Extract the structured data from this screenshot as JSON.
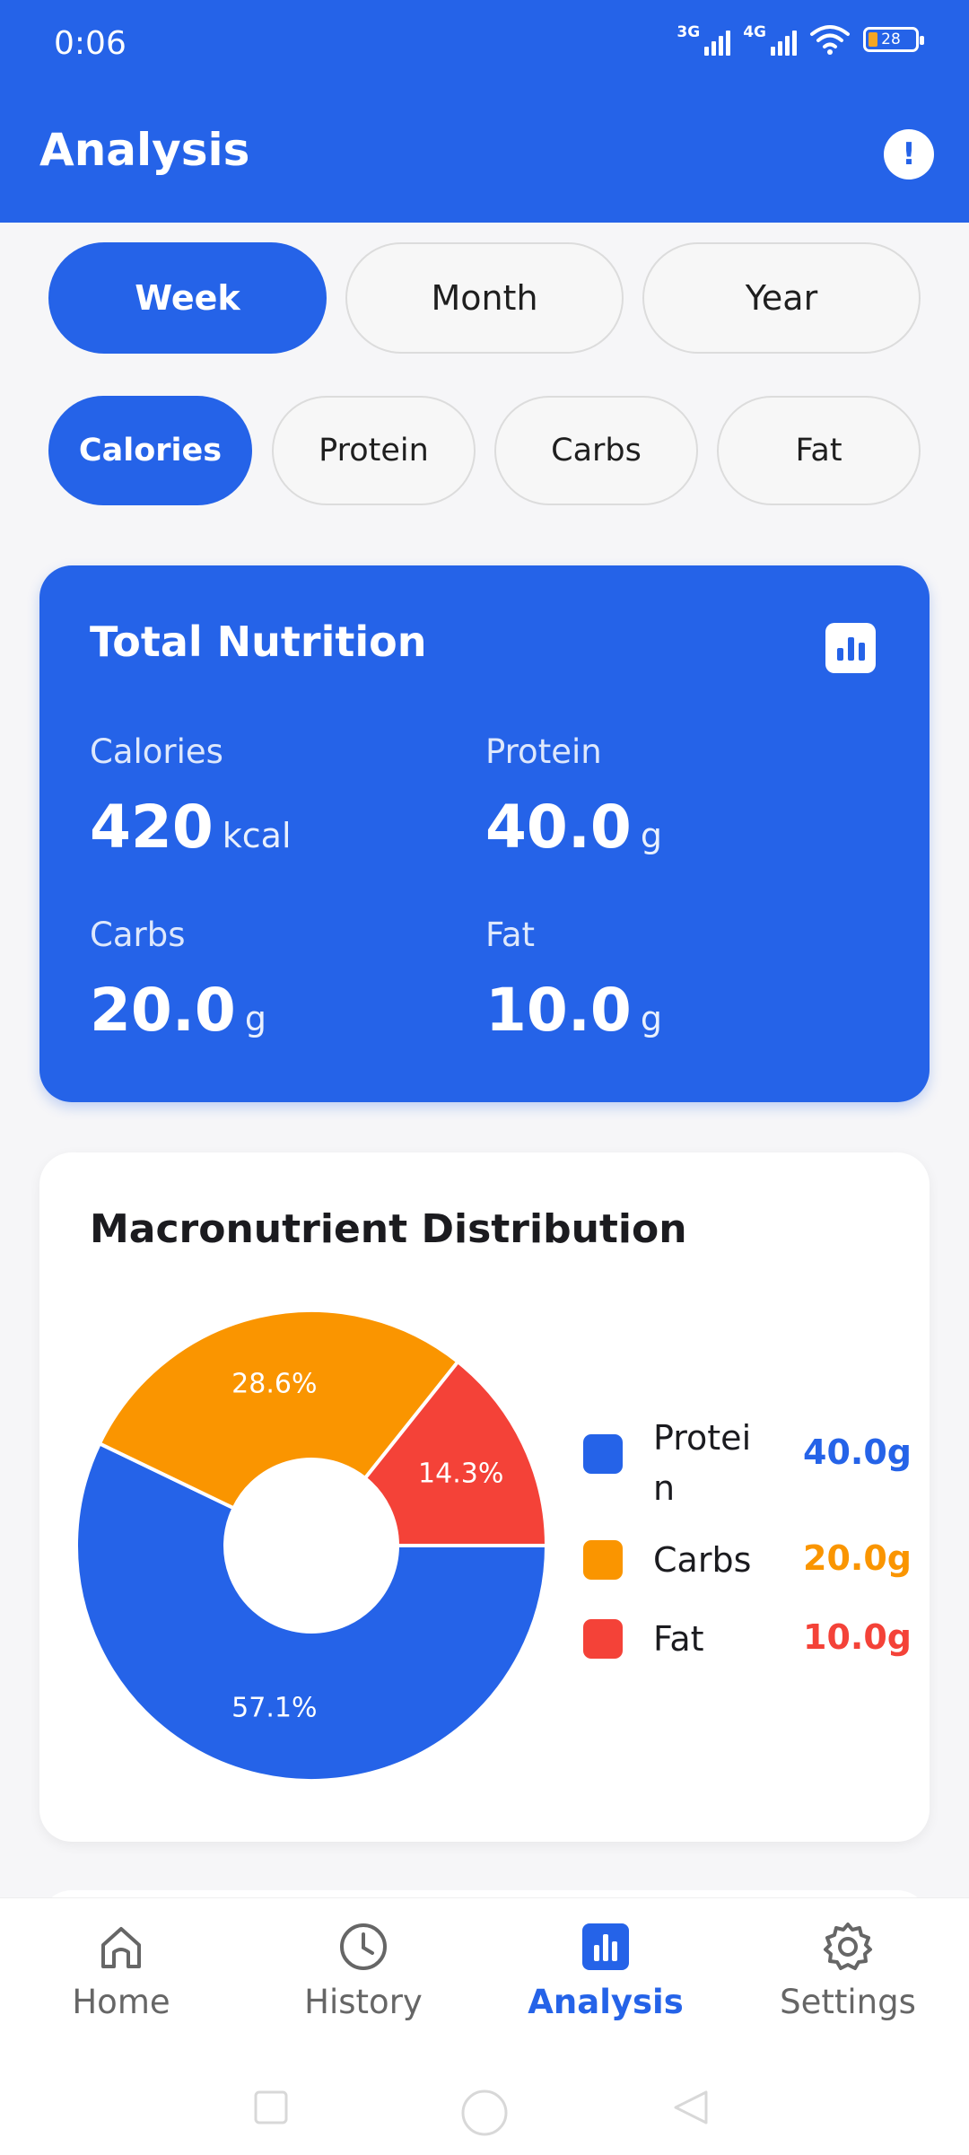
{
  "status_bar": {
    "time": "0:06",
    "net1": "3G",
    "net2": "4G",
    "battery": "28"
  },
  "app_bar": {
    "title": "Analysis",
    "info_glyph": "!"
  },
  "period_tabs": [
    {
      "label": "Week",
      "active": true
    },
    {
      "label": "Month",
      "active": false
    },
    {
      "label": "Year",
      "active": false
    }
  ],
  "metric_tabs": [
    {
      "label": "Calories",
      "active": true
    },
    {
      "label": "Protein",
      "active": false
    },
    {
      "label": "Carbs",
      "active": false
    },
    {
      "label": "Fat",
      "active": false
    }
  ],
  "total_nutrition": {
    "title": "Total Nutrition",
    "icon": "bar-chart-icon",
    "stats": [
      {
        "label": "Calories",
        "value": "420",
        "unit": "kcal"
      },
      {
        "label": "Protein",
        "value": "40.0",
        "unit": "g"
      },
      {
        "label": "Carbs",
        "value": "20.0",
        "unit": "g"
      },
      {
        "label": "Fat",
        "value": "10.0",
        "unit": "g"
      }
    ]
  },
  "macro_distribution": {
    "title": "Macronutrient Distribution",
    "legend": [
      {
        "name": "Protei n",
        "value": "40.0g",
        "color": "#2563e8"
      },
      {
        "name": "Carbs",
        "value": "20.0g",
        "color": "#fa9500"
      },
      {
        "name": "Fat",
        "value": "10.0g",
        "color": "#f44238"
      }
    ]
  },
  "chart_data": {
    "type": "pie",
    "title": "Macronutrient Distribution",
    "categories": [
      "Protein",
      "Carbs",
      "Fat"
    ],
    "values": [
      40.0,
      20.0,
      10.0
    ],
    "units": "g",
    "percent_labels": [
      "57.1%",
      "28.6%",
      "14.3%"
    ],
    "colors": [
      "#2563e8",
      "#fa9500",
      "#f44238"
    ],
    "donut": true,
    "legend_position": "right"
  },
  "bottom_nav": [
    {
      "label": "Home",
      "icon": "home-icon",
      "active": false
    },
    {
      "label": "History",
      "icon": "clock-icon",
      "active": false
    },
    {
      "label": "Analysis",
      "icon": "analytics-icon",
      "active": true
    },
    {
      "label": "Settings",
      "icon": "gear-icon",
      "active": false
    }
  ]
}
